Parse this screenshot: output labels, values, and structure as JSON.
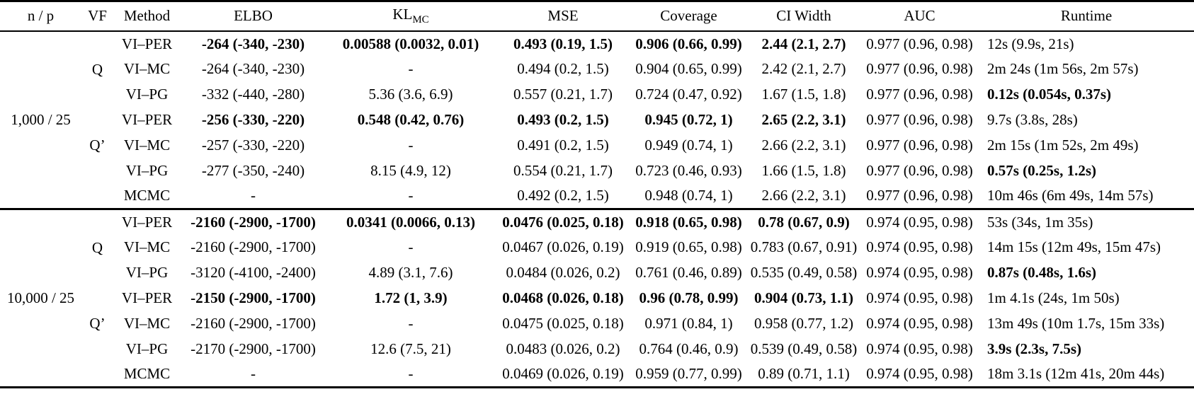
{
  "colors": {
    "text": "#000000",
    "background": "#ffffff",
    "rule": "#000000"
  },
  "columns": {
    "np": "n / p",
    "vf": "VF",
    "method": "Method",
    "elbo": "ELBO",
    "kl_main": "KL",
    "kl_sub": "MC",
    "mse": "MSE",
    "coverage": "Coverage",
    "ci_width": "CI Width",
    "auc": "AUC",
    "runtime": "Runtime"
  },
  "groups": [
    {
      "np": "1,000 / 25",
      "subgroups": [
        {
          "vf": "Q",
          "rows": [
            {
              "method": "VI–PER",
              "cells": [
                [
                  "-264 (-340, -230)",
                  true
                ],
                [
                  "0.00588 (0.0032, 0.01)",
                  true
                ],
                [
                  "0.493 (0.19, 1.5)",
                  true
                ],
                [
                  "0.906 (0.66, 0.99)",
                  true
                ],
                [
                  "2.44 (2.1, 2.7)",
                  true
                ],
                [
                  "0.977 (0.96, 0.98)",
                  false
                ],
                [
                  "12s (9.9s, 21s)",
                  false
                ]
              ]
            },
            {
              "method": "VI–MC",
              "cells": [
                [
                  "-264 (-340, -230)",
                  false
                ],
                [
                  "-",
                  false
                ],
                [
                  "0.494 (0.2, 1.5)",
                  false
                ],
                [
                  "0.904 (0.65, 0.99)",
                  false
                ],
                [
                  "2.42 (2.1, 2.7)",
                  false
                ],
                [
                  "0.977 (0.96, 0.98)",
                  false
                ],
                [
                  "2m 24s (1m 56s, 2m 57s)",
                  false
                ]
              ]
            },
            {
              "method": "VI–PG",
              "cells": [
                [
                  "-332 (-440, -280)",
                  false
                ],
                [
                  "5.36 (3.6, 6.9)",
                  false
                ],
                [
                  "0.557 (0.21, 1.7)",
                  false
                ],
                [
                  "0.724 (0.47, 0.92)",
                  false
                ],
                [
                  "1.67 (1.5, 1.8)",
                  false
                ],
                [
                  "0.977 (0.96, 0.98)",
                  false
                ],
                [
                  "0.12s (0.054s, 0.37s)",
                  true
                ]
              ]
            }
          ]
        },
        {
          "vf": "Q’",
          "rows": [
            {
              "method": "VI–PER",
              "cells": [
                [
                  "-256 (-330, -220)",
                  true
                ],
                [
                  "0.548 (0.42, 0.76)",
                  true
                ],
                [
                  "0.493 (0.2, 1.5)",
                  true
                ],
                [
                  "0.945 (0.72, 1)",
                  true
                ],
                [
                  "2.65 (2.2, 3.1)",
                  true
                ],
                [
                  "0.977 (0.96, 0.98)",
                  false
                ],
                [
                  "9.7s (3.8s, 28s)",
                  false
                ]
              ]
            },
            {
              "method": "VI–MC",
              "cells": [
                [
                  "-257 (-330, -220)",
                  false
                ],
                [
                  "-",
                  false
                ],
                [
                  "0.491 (0.2, 1.5)",
                  false
                ],
                [
                  "0.949 (0.74, 1)",
                  false
                ],
                [
                  "2.66 (2.2, 3.1)",
                  false
                ],
                [
                  "0.977 (0.96, 0.98)",
                  false
                ],
                [
                  "2m 15s (1m 52s, 2m 49s)",
                  false
                ]
              ]
            },
            {
              "method": "VI–PG",
              "cells": [
                [
                  "-277 (-350, -240)",
                  false
                ],
                [
                  "8.15 (4.9, 12)",
                  false
                ],
                [
                  "0.554 (0.21, 1.7)",
                  false
                ],
                [
                  "0.723 (0.46, 0.93)",
                  false
                ],
                [
                  "1.66 (1.5, 1.8)",
                  false
                ],
                [
                  "0.977 (0.96, 0.98)",
                  false
                ],
                [
                  "0.57s (0.25s, 1.2s)",
                  true
                ]
              ]
            }
          ]
        }
      ],
      "mcmc_row": {
        "method": "MCMC",
        "cells": [
          [
            "-",
            false
          ],
          [
            "-",
            false
          ],
          [
            "0.492 (0.2, 1.5)",
            false
          ],
          [
            "0.948 (0.74, 1)",
            false
          ],
          [
            "2.66 (2.2, 3.1)",
            false
          ],
          [
            "0.977 (0.96, 0.98)",
            false
          ],
          [
            "10m 46s (6m 49s, 14m 57s)",
            false
          ]
        ]
      }
    },
    {
      "np": "10,000 / 25",
      "subgroups": [
        {
          "vf": "Q",
          "rows": [
            {
              "method": "VI–PER",
              "cells": [
                [
                  "-2160 (-2900, -1700)",
                  true
                ],
                [
                  "0.0341 (0.0066, 0.13)",
                  true
                ],
                [
                  "0.0476 (0.025, 0.18)",
                  true
                ],
                [
                  "0.918 (0.65, 0.98)",
                  true
                ],
                [
                  "0.78 (0.67, 0.9)",
                  true
                ],
                [
                  "0.974 (0.95, 0.98)",
                  false
                ],
                [
                  "53s (34s, 1m 35s)",
                  false
                ]
              ]
            },
            {
              "method": "VI–MC",
              "cells": [
                [
                  "-2160 (-2900, -1700)",
                  false
                ],
                [
                  "-",
                  false
                ],
                [
                  "0.0467 (0.026, 0.19)",
                  false
                ],
                [
                  "0.919 (0.65, 0.98)",
                  false
                ],
                [
                  "0.783 (0.67, 0.91)",
                  false
                ],
                [
                  "0.974 (0.95, 0.98)",
                  false
                ],
                [
                  "14m 15s (12m 49s, 15m 47s)",
                  false
                ]
              ]
            },
            {
              "method": "VI–PG",
              "cells": [
                [
                  "-3120 (-4100, -2400)",
                  false
                ],
                [
                  "4.89 (3.1, 7.6)",
                  false
                ],
                [
                  "0.0484 (0.026, 0.2)",
                  false
                ],
                [
                  "0.761 (0.46, 0.89)",
                  false
                ],
                [
                  "0.535 (0.49, 0.58)",
                  false
                ],
                [
                  "0.974 (0.95, 0.98)",
                  false
                ],
                [
                  "0.87s (0.48s, 1.6s)",
                  true
                ]
              ]
            }
          ]
        },
        {
          "vf": "Q’",
          "rows": [
            {
              "method": "VI–PER",
              "cells": [
                [
                  "-2150 (-2900, -1700)",
                  true
                ],
                [
                  "1.72 (1, 3.9)",
                  true
                ],
                [
                  "0.0468 (0.026, 0.18)",
                  true
                ],
                [
                  "0.96 (0.78, 0.99)",
                  true
                ],
                [
                  "0.904 (0.73, 1.1)",
                  true
                ],
                [
                  "0.974 (0.95, 0.98)",
                  false
                ],
                [
                  "1m 4.1s (24s, 1m 50s)",
                  false
                ]
              ]
            },
            {
              "method": "VI–MC",
              "cells": [
                [
                  "-2160 (-2900, -1700)",
                  false
                ],
                [
                  "-",
                  false
                ],
                [
                  "0.0475 (0.025, 0.18)",
                  false
                ],
                [
                  "0.971 (0.84, 1)",
                  false
                ],
                [
                  "0.958 (0.77, 1.2)",
                  false
                ],
                [
                  "0.974 (0.95, 0.98)",
                  false
                ],
                [
                  "13m 49s (10m 1.7s, 15m 33s)",
                  false
                ]
              ]
            },
            {
              "method": "VI–PG",
              "cells": [
                [
                  "-2170 (-2900, -1700)",
                  false
                ],
                [
                  "12.6 (7.5, 21)",
                  false
                ],
                [
                  "0.0483 (0.026, 0.2)",
                  false
                ],
                [
                  "0.764 (0.46, 0.9)",
                  false
                ],
                [
                  "0.539 (0.49, 0.58)",
                  false
                ],
                [
                  "0.974 (0.95, 0.98)",
                  false
                ],
                [
                  "3.9s (2.3s, 7.5s)",
                  true
                ]
              ]
            }
          ]
        }
      ],
      "mcmc_row": {
        "method": "MCMC",
        "cells": [
          [
            "-",
            false
          ],
          [
            "-",
            false
          ],
          [
            "0.0469 (0.026, 0.19)",
            false
          ],
          [
            "0.959 (0.77, 0.99)",
            false
          ],
          [
            "0.89 (0.71, 1.1)",
            false
          ],
          [
            "0.974 (0.95, 0.98)",
            false
          ],
          [
            "18m 3.1s (12m 41s, 20m 44s)",
            false
          ]
        ]
      }
    }
  ]
}
